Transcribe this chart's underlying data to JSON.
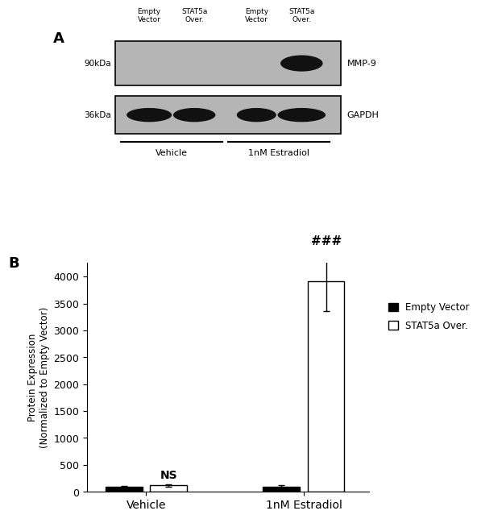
{
  "panel_A": {
    "upper_label": "MMP-9",
    "lower_label": "GAPDH",
    "upper_kDa": "90kDa",
    "lower_kDa": "36kDa",
    "blot_bg": "#b5b5b5",
    "band_color": "#111111",
    "col_labels": [
      "Empty\nVector",
      "STAT5a\nOver.",
      "Empty\nVector",
      "STAT5a\nOver."
    ],
    "group_labels": [
      "Vehicle",
      "1nM Estradiol"
    ]
  },
  "panel_B": {
    "categories": [
      "Vehicle",
      "1nM Estradiol"
    ],
    "empty_vector_values": [
      100,
      100
    ],
    "stat5a_values": [
      120,
      3910
    ],
    "empty_vector_errors": [
      15,
      18
    ],
    "stat5a_errors": [
      25,
      550
    ],
    "empty_vector_color": "#000000",
    "stat5a_color": "#ffffff",
    "stat5a_edgecolor": "#000000",
    "ylabel": "Protein Expression\n(Normalized to Empty Vector)",
    "ylim": [
      0,
      4250
    ],
    "yticks": [
      0,
      500,
      1000,
      1500,
      2000,
      2500,
      3000,
      3500,
      4000
    ],
    "ns_label": "NS",
    "sig_label": "###",
    "legend_labels": [
      "Empty Vector",
      "STAT5a Over."
    ]
  }
}
